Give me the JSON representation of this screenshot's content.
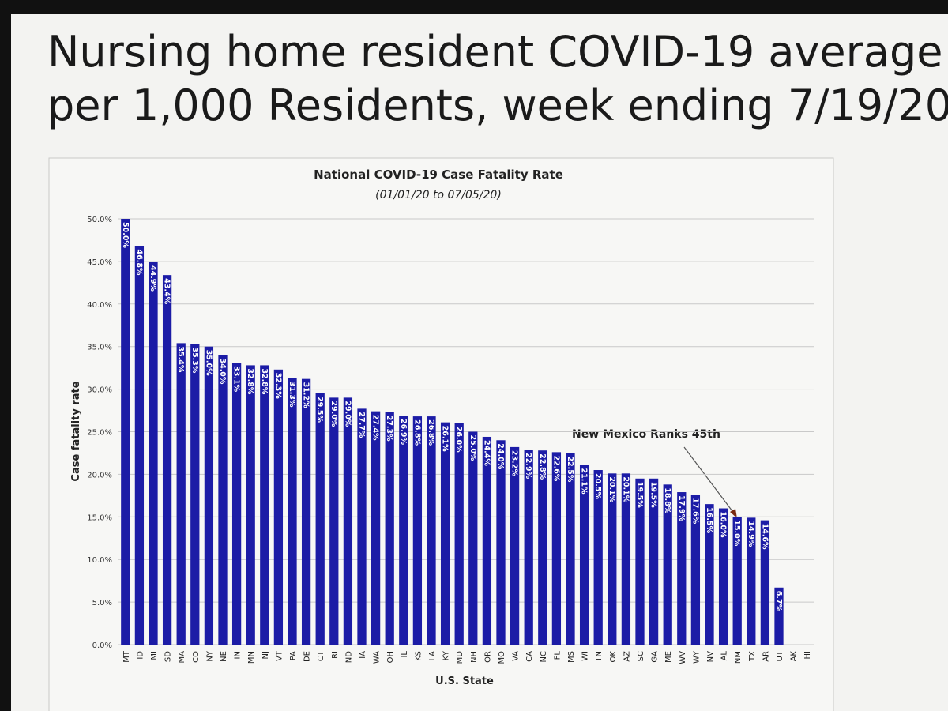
{
  "slide_title": {
    "line1": "Nursing home resident COVID-19 average",
    "line2": "per 1,000 Residents, week ending 7/19/20"
  },
  "chart_data": {
    "type": "bar",
    "title": "National COVID-19 Case Fatality Rate",
    "subtitle": "(01/01/20 to 07/05/20)",
    "x_label": "U.S. State",
    "y_label": "Case fatality rate",
    "annotation": "New Mexico Ranks 45th",
    "color": "#1c1ca6",
    "grid": true,
    "categories": [
      "MT",
      "ID",
      "MI",
      "SD",
      "MA",
      "CO",
      "NY",
      "NE",
      "IN",
      "MN",
      "NJ",
      "VT",
      "PA",
      "DE",
      "CT",
      "RI",
      "ND",
      "IA",
      "WA",
      "OH",
      "IL",
      "KS",
      "LA",
      "KY",
      "MD",
      "NH",
      "OR",
      "MO",
      "VA",
      "CA",
      "NC",
      "FL",
      "MS",
      "WI",
      "TN",
      "OK",
      "AZ",
      "SC",
      "GA",
      "ME",
      "WV",
      "WY",
      "NV",
      "AL",
      "NM",
      "TX",
      "AR",
      "UT",
      "AK",
      "HI"
    ],
    "values": [
      50.0,
      46.8,
      44.9,
      43.4,
      35.4,
      35.3,
      35.0,
      34.0,
      33.1,
      32.8,
      32.8,
      32.3,
      31.3,
      31.2,
      29.5,
      29.0,
      29.0,
      27.7,
      27.4,
      27.3,
      26.9,
      26.8,
      26.8,
      26.1,
      26.0,
      25.0,
      24.4,
      24.0,
      23.2,
      22.9,
      22.8,
      22.6,
      22.5,
      21.1,
      20.5,
      20.1,
      20.1,
      19.5,
      19.5,
      18.8,
      17.9,
      17.6,
      16.5,
      16.0,
      15.0,
      14.9,
      14.6,
      6.7,
      null,
      null
    ],
    "value_labels": [
      "50.0%",
      "46.8%",
      "44.9%",
      "43.4%",
      "35.4%",
      "35.3%",
      "35.0%",
      "34.0%",
      "33.1%",
      "32.8%",
      "32.8%",
      "32.3%",
      "31.3%",
      "31.2%",
      "29.5%",
      "29.0%",
      "29.0%",
      "27.7%",
      "27.4%",
      "27.3%",
      "26.9%",
      "26.8%",
      "26.8%",
      "26.1%",
      "26.0%",
      "25.0%",
      "24.4%",
      "24.0%",
      "23.2%",
      "22.9%",
      "22.8%",
      "22.6%",
      "22.5%",
      "21.1%",
      "20.5%",
      "20.1%",
      "20.1%",
      "19.5%",
      "19.5%",
      "18.8%",
      "17.9%",
      "17.6%",
      "16.5%",
      "16.0%",
      "15.0%",
      "14.9%",
      "14.6%",
      "6.7%",
      null,
      null
    ],
    "ylim": [
      0,
      50
    ],
    "yticks": [
      {
        "value": 0,
        "label": "0.0%"
      },
      {
        "value": 5,
        "label": "5.0%"
      },
      {
        "value": 10,
        "label": "10.0%"
      },
      {
        "value": 15,
        "label": "15.0%"
      },
      {
        "value": 20,
        "label": "20.0%"
      },
      {
        "value": 25,
        "label": "25.0%"
      },
      {
        "value": 30,
        "label": "30.0%"
      },
      {
        "value": 35,
        "label": "35.0%"
      },
      {
        "value": 40,
        "label": "40.0%"
      },
      {
        "value": 45,
        "label": "45.0%"
      },
      {
        "value": 50,
        "label": "50.0%"
      }
    ]
  }
}
